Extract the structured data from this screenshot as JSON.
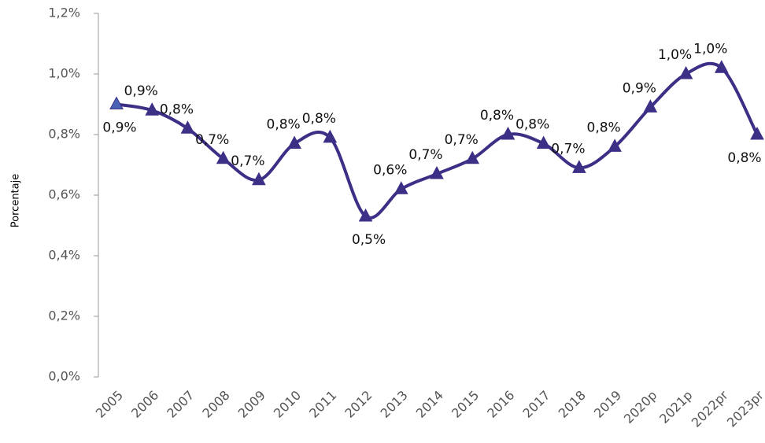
{
  "chart_data": {
    "type": "line",
    "y_axis_label": "Porcentaje",
    "categories": [
      "2005",
      "2006",
      "2007",
      "2008",
      "2009",
      "2010",
      "2011",
      "2012",
      "2013",
      "2014",
      "2015",
      "2016",
      "2017",
      "2018",
      "2019",
      "2020p",
      "2021p",
      "2022pr",
      "2023pr"
    ],
    "series": [
      {
        "name": "Porcentaje",
        "color": "#3b2f86",
        "values": [
          0.9,
          0.88,
          0.82,
          0.72,
          0.65,
          0.77,
          0.79,
          0.53,
          0.62,
          0.67,
          0.72,
          0.8,
          0.77,
          0.69,
          0.76,
          0.89,
          1.0,
          1.02,
          0.8
        ],
        "value_labels": [
          "0,9%",
          "0,9%",
          "0,8%",
          "0,7%",
          "0,7%",
          "0,8%",
          "0,8%",
          "0,5%",
          "0,6%",
          "0,7%",
          "0,7%",
          "0,8%",
          "0,8%",
          "0,7%",
          "0,8%",
          "0,9%",
          "1,0%",
          "1,0%",
          "0,8%"
        ]
      }
    ],
    "ylim": [
      0,
      1.2
    ],
    "yticks": [
      {
        "value": 0,
        "label": "0,0%"
      },
      {
        "value": 0.2,
        "label": "0,2%"
      },
      {
        "value": 0.4,
        "label": "0,4%"
      },
      {
        "value": 0.6,
        "label": "0,6%"
      },
      {
        "value": 0.8,
        "label": "0,8%"
      },
      {
        "value": 1.0,
        "label": "1,0%"
      },
      {
        "value": 1.2,
        "label": "1,2%"
      }
    ],
    "grid": false
  }
}
